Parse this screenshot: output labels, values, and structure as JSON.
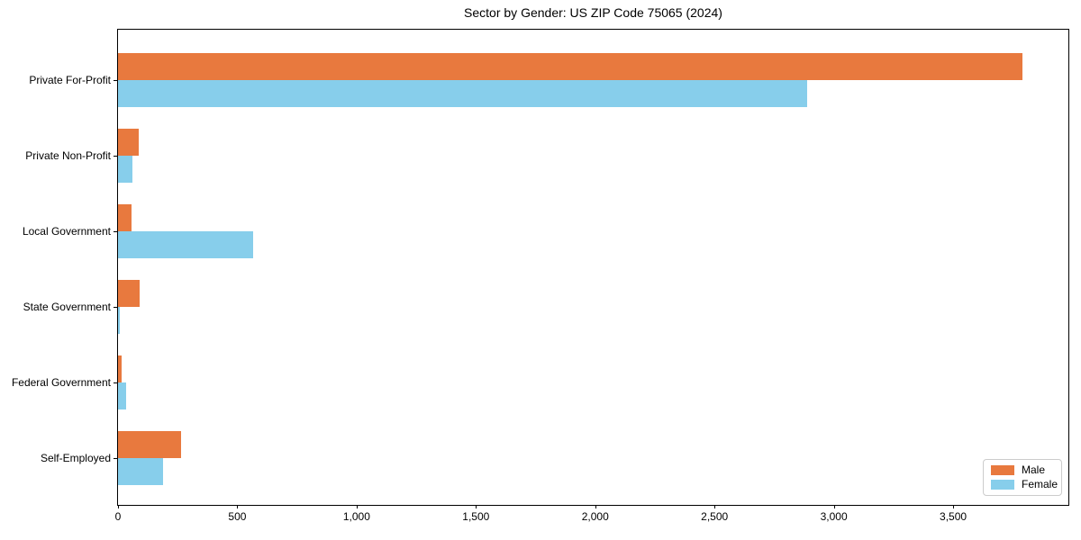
{
  "title": "Sector by Gender: US ZIP Code 75065 (2024)",
  "colors": {
    "male": "#e8793e",
    "female": "#87ceeb",
    "axis": "#000000",
    "legend_border": "#cccccc",
    "background": "#ffffff"
  },
  "legend": {
    "position": "lower right",
    "items": [
      "Male",
      "Female"
    ]
  },
  "chart_data": {
    "type": "bar",
    "orientation": "horizontal",
    "title": "Sector by Gender: US ZIP Code 75065 (2024)",
    "categories": [
      "Private For-Profit",
      "Private Non-Profit",
      "Local Government",
      "State Government",
      "Federal Government",
      "Self-Employed"
    ],
    "series": [
      {
        "name": "Male",
        "color": "#e8793e",
        "values": [
          3790,
          85,
          55,
          90,
          15,
          265
        ]
      },
      {
        "name": "Female",
        "color": "#87ceeb",
        "values": [
          2890,
          60,
          565,
          7,
          35,
          190
        ]
      }
    ],
    "xlabel": "",
    "ylabel": "",
    "xlim": [
      0,
      3983
    ],
    "xticks": [
      0,
      500,
      1000,
      1500,
      2000,
      2500,
      3000,
      3500
    ],
    "xtick_labels": [
      "0",
      "500",
      "1,000",
      "1,500",
      "2,000",
      "2,500",
      "3,000",
      "3,500"
    ],
    "grid": false,
    "legend_position": "lower right"
  }
}
